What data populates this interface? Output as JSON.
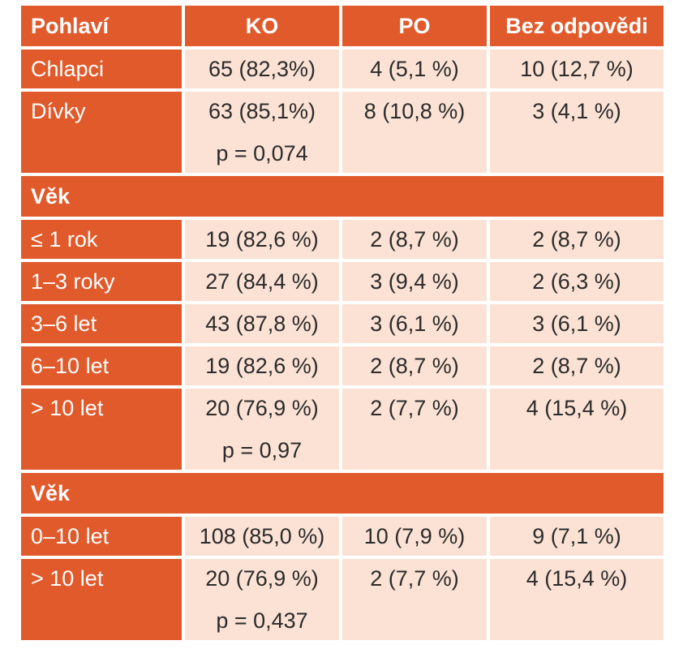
{
  "header": [
    "Pohlaví",
    "KO",
    "PO",
    "Bez odpovědi"
  ],
  "gender": {
    "rows": [
      {
        "label": "Chlapci",
        "ko": "65 (82,3%)",
        "po": "4 (5,1 %)",
        "none": "10 (12,7 %)"
      },
      {
        "label": "Dívky",
        "ko": "63 (85,1%)",
        "po": "8 (10,8 %)",
        "none": "3 (4,1 %)"
      }
    ],
    "p_value": "p = 0,074"
  },
  "age_groups": {
    "title": "Věk",
    "rows": [
      {
        "label": "≤ 1 rok",
        "ko": "19 (82,6 %)",
        "po": "2 (8,7 %)",
        "none": "2 (8,7 %)"
      },
      {
        "label": "1–3 roky",
        "ko": "27 (84,4 %)",
        "po": "3 (9,4 %)",
        "none": "2 (6,3 %)"
      },
      {
        "label": "3–6 let",
        "ko": "43 (87,8 %)",
        "po": "3 (6,1 %)",
        "none": "3 (6,1 %)"
      },
      {
        "label": "6–10 let",
        "ko": "19 (82,6 %)",
        "po": "2 (8,7 %)",
        "none": "2 (8,7 %)"
      },
      {
        "label": "> 10 let",
        "ko": "20 (76,9 %)",
        "po": "2 (7,7 %)",
        "none": "4 (15,4 %)"
      }
    ],
    "p_value": "p = 0,97"
  },
  "age_binary": {
    "title": "Věk",
    "rows": [
      {
        "label": "0–10 let",
        "ko": "108 (85,0 %)",
        "po": "10 (7,9 %)",
        "none": "9 (7,1 %)"
      },
      {
        "label": "> 10 let",
        "ko": "20 (76,9 %)",
        "po": "2 (7,7 %)",
        "none": "4 (15,4 %)"
      }
    ],
    "p_value": "p = 0,437"
  },
  "colors": {
    "accent": "#e05a2b",
    "cell": "#fbe2d4",
    "text": "#2b2b2b"
  }
}
